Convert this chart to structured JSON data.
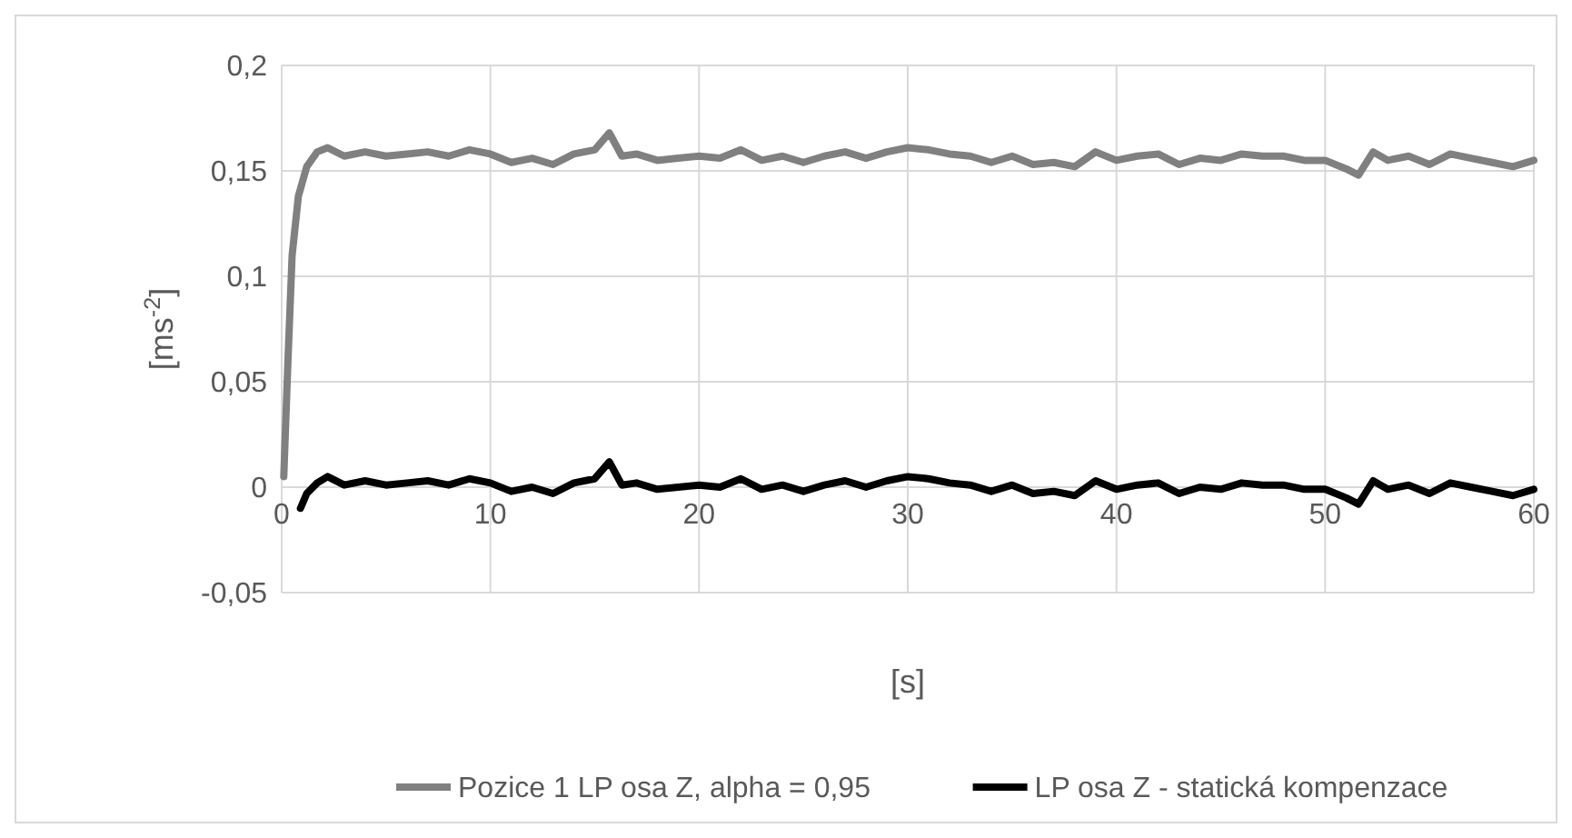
{
  "chart_data": {
    "type": "line",
    "xlabel": "[s]",
    "ylabel": "[ms$^{-2}$]",
    "xlim": [
      0,
      60
    ],
    "ylim": [
      -0.05,
      0.2
    ],
    "xticks": [
      0,
      10,
      20,
      30,
      40,
      50,
      60
    ],
    "yticks": [
      {
        "value": -0.05,
        "label": "-0,05"
      },
      {
        "value": 0,
        "label": "0"
      },
      {
        "value": 0.05,
        "label": "0,05"
      },
      {
        "value": 0.1,
        "label": "0,1"
      },
      {
        "value": 0.15,
        "label": "0,15"
      },
      {
        "value": 0.2,
        "label": "0,2"
      }
    ],
    "grid": true,
    "legend": "bottom",
    "line_style": "solid",
    "marker": "none",
    "series": [
      {
        "name": "Pozice 1 LP osa Z, alpha = 0,95",
        "color": "#808080",
        "x": [
          0.1,
          0.3,
          0.5,
          0.8,
          1.2,
          1.7,
          2.2,
          3,
          4,
          5,
          6,
          7,
          8,
          9,
          10,
          11,
          12,
          13,
          14,
          15,
          15.7,
          16.3,
          17,
          18,
          19,
          20,
          21,
          22,
          23,
          24,
          25,
          26,
          27,
          28,
          29,
          30,
          31,
          32,
          33,
          34,
          35,
          36,
          37,
          38,
          39,
          40,
          41,
          42,
          43,
          44,
          45,
          46,
          47,
          48,
          49,
          50,
          51,
          51.6,
          52.3,
          53,
          54,
          55,
          56,
          57,
          58,
          59,
          60
        ],
        "values": [
          0.005,
          0.06,
          0.11,
          0.138,
          0.152,
          0.159,
          0.161,
          0.157,
          0.159,
          0.157,
          0.158,
          0.159,
          0.157,
          0.16,
          0.158,
          0.154,
          0.156,
          0.153,
          0.158,
          0.16,
          0.168,
          0.157,
          0.158,
          0.155,
          0.156,
          0.157,
          0.156,
          0.16,
          0.155,
          0.157,
          0.154,
          0.157,
          0.159,
          0.156,
          0.159,
          0.161,
          0.16,
          0.158,
          0.157,
          0.154,
          0.157,
          0.153,
          0.154,
          0.152,
          0.159,
          0.155,
          0.157,
          0.158,
          0.153,
          0.156,
          0.155,
          0.158,
          0.157,
          0.157,
          0.155,
          0.155,
          0.151,
          0.148,
          0.159,
          0.155,
          0.157,
          0.153,
          0.158,
          0.156,
          0.154,
          0.152,
          0.155
        ]
      },
      {
        "name": "LP osa Z - statická kompenzace",
        "color": "#000000",
        "x": [
          0.9,
          1.2,
          1.7,
          2.2,
          3,
          4,
          5,
          6,
          7,
          8,
          9,
          10,
          11,
          12,
          13,
          14,
          15,
          15.7,
          16.3,
          17,
          18,
          19,
          20,
          21,
          22,
          23,
          24,
          25,
          26,
          27,
          28,
          29,
          30,
          31,
          32,
          33,
          34,
          35,
          36,
          37,
          38,
          39,
          40,
          41,
          42,
          43,
          44,
          45,
          46,
          47,
          48,
          49,
          50,
          51,
          51.6,
          52.3,
          53,
          54,
          55,
          56,
          57,
          58,
          59,
          60
        ],
        "values": [
          -0.01,
          -0.003,
          0.002,
          0.005,
          0.001,
          0.003,
          0.001,
          0.002,
          0.003,
          0.001,
          0.004,
          0.002,
          -0.002,
          0,
          -0.003,
          0.002,
          0.004,
          0.012,
          0.001,
          0.002,
          -0.001,
          0,
          0.001,
          0,
          0.004,
          -0.001,
          0.001,
          -0.002,
          0.001,
          0.003,
          0,
          0.003,
          0.005,
          0.004,
          0.002,
          0.001,
          -0.002,
          0.001,
          -0.003,
          -0.002,
          -0.004,
          0.003,
          -0.001,
          0.001,
          0.002,
          -0.003,
          0,
          -0.001,
          0.002,
          0.001,
          0.001,
          -0.001,
          -0.001,
          -0.005,
          -0.008,
          0.003,
          -0.001,
          0.001,
          -0.003,
          0.002,
          0,
          -0.002,
          -0.004,
          -0.001
        ]
      }
    ]
  }
}
